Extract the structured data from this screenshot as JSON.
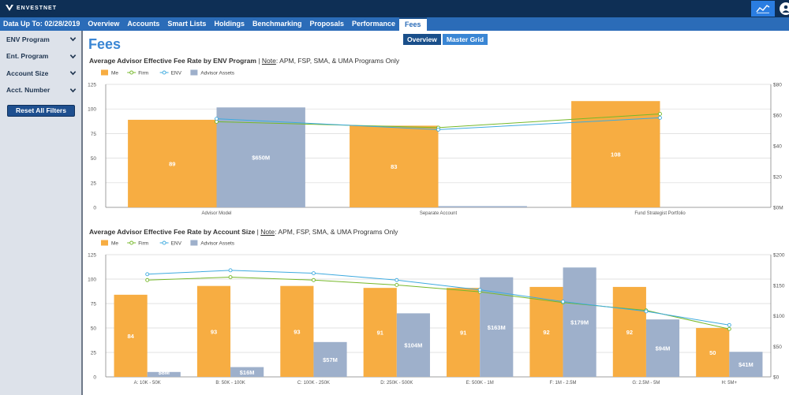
{
  "brand": {
    "name": "ENVESTNET"
  },
  "nav": {
    "data_date": "Data Up To: 02/28/2019",
    "items": [
      "Overview",
      "Accounts",
      "Smart Lists",
      "Holdings",
      "Benchmarking",
      "Proposals",
      "Performance",
      "Fees"
    ],
    "active": "Fees"
  },
  "sidebar": {
    "filters": [
      "ENV Program",
      "Ent. Program",
      "Account Size",
      "Acct. Number"
    ],
    "reset_label": "Reset All Filters"
  },
  "page": {
    "title": "Fees",
    "toggle": [
      "Overview",
      "Master Grid"
    ],
    "active_toggle": "Overview"
  },
  "colors": {
    "me": "#f7ad42",
    "firm": "#76b82a",
    "env": "#3eaadf",
    "assets": "#9eb0cb",
    "navy": "#0e2f55",
    "nav": "#2b6cb8"
  },
  "chart1": {
    "title_bold": "Average Advisor Effective Fee Rate by ENV Program",
    "title_note_label": "Note",
    "title_note": ": APM, FSP, SMA, & UMA Programs Only"
  },
  "chart2": {
    "title_bold": "Average Advisor Effective Fee Rate by Account Size",
    "title_note_label": "Note",
    "title_note": ": APM, FSP, SMA, & UMA Programs Only"
  },
  "chart_data": [
    {
      "type": "bar",
      "title": "Average Advisor Effective Fee Rate by ENV Program",
      "legend": [
        "Me",
        "Firm",
        "ENV",
        "Advisor Assets"
      ],
      "legend_position": "top-left",
      "categories": [
        "Advisor Model",
        "Separate Account",
        "Fund Strategist Portfolio"
      ],
      "series": [
        {
          "name": "Me",
          "kind": "bar",
          "axis": "left",
          "values": [
            89,
            83,
            108
          ],
          "labels": [
            "89",
            "83",
            "108"
          ]
        },
        {
          "name": "Advisor Assets",
          "kind": "bar",
          "axis": "right",
          "values": [
            650,
            8,
            0
          ],
          "labels": [
            "$650M",
            "",
            ""
          ]
        },
        {
          "name": "Firm",
          "kind": "line",
          "axis": "left",
          "values": [
            87,
            81,
            95
          ]
        },
        {
          "name": "ENV",
          "kind": "line",
          "axis": "left",
          "values": [
            90,
            79,
            91
          ]
        }
      ],
      "ylim": [
        0,
        125
      ],
      "yticks": [
        "0",
        "25",
        "50",
        "75",
        "100",
        "125"
      ],
      "y2lim": [
        0,
        800
      ],
      "y2ticks": [
        "$0M",
        "$20",
        "$40",
        "$60",
        "$80"
      ],
      "grid": true
    },
    {
      "type": "bar",
      "title": "Average Advisor Effective Fee Rate by Account Size",
      "legend": [
        "Me",
        "Firm",
        "ENV",
        "Advisor Assets"
      ],
      "legend_position": "top-left",
      "categories": [
        "A: 10K - 50K",
        "B: 50K - 100K",
        "C: 100K - 250K",
        "D: 250K - 500K",
        "E: 500K - 1M",
        "F: 1M - 2.5M",
        "G: 2.5M - 5M",
        "H: 5M+"
      ],
      "series": [
        {
          "name": "Me",
          "kind": "bar",
          "axis": "left",
          "values": [
            84,
            93,
            93,
            91,
            91,
            92,
            92,
            50
          ],
          "labels": [
            "84",
            "93",
            "93",
            "91",
            "91",
            "92",
            "92",
            "50"
          ]
        },
        {
          "name": "Advisor Assets",
          "kind": "bar",
          "axis": "right",
          "values": [
            8,
            16,
            57,
            104,
            163,
            179,
            94,
            41
          ],
          "labels": [
            "$8M",
            "$16M",
            "$57M",
            "$104M",
            "$163M",
            "$179M",
            "$94M",
            "$41M"
          ]
        },
        {
          "name": "Firm",
          "kind": "line",
          "axis": "left",
          "values": [
            99,
            102,
            99,
            94,
            87,
            76,
            68,
            49
          ]
        },
        {
          "name": "ENV",
          "kind": "line",
          "axis": "left",
          "values": [
            105,
            109,
            106,
            99,
            89,
            77,
            67,
            53
          ]
        }
      ],
      "ylim": [
        0,
        125
      ],
      "yticks": [
        "0",
        "25",
        "50",
        "75",
        "100",
        "125"
      ],
      "y2lim": [
        0,
        200
      ],
      "y2ticks": [
        "$0",
        "$50",
        "$100",
        "$150",
        "$200"
      ],
      "grid": true
    }
  ]
}
